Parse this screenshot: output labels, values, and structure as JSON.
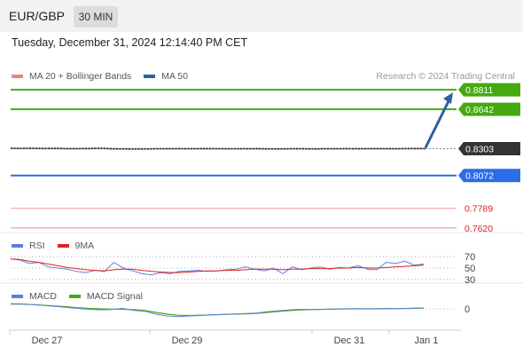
{
  "header": {
    "symbol": "EUR/GBP",
    "timeframe": "30 MIN"
  },
  "timestamp": "Tuesday, December 31, 2024 12:14:40 PM CET",
  "legend": {
    "ma20": {
      "label": "MA 20 + Bollinger Bands",
      "color": "#f08080"
    },
    "ma50": {
      "label": "MA 50",
      "color": "#2e5fa3"
    }
  },
  "credit": "Research © 2024 Trading Central",
  "rsi_legend": {
    "rsi": {
      "label": "RSI",
      "color": "#5b7fde"
    },
    "ma9": {
      "label": "9MA",
      "color": "#dd2222"
    }
  },
  "macd_legend": {
    "macd": {
      "label": "MACD",
      "color": "#5b7fde"
    },
    "signal": {
      "label": "MACD Signal",
      "color": "#44aa11"
    }
  },
  "chart_data": {
    "type": "line",
    "x_labels": [
      "Dec 27",
      "Dec 29",
      "Dec 31",
      "Jan 1"
    ],
    "price": {
      "ylim": [
        0.758,
        0.885
      ],
      "series": [
        0.8306,
        0.8305,
        0.8306,
        0.8304,
        0.8305,
        0.8303,
        0.8303,
        0.8304,
        0.8306,
        0.8302,
        0.8301,
        0.83,
        0.8301,
        0.8302,
        0.8302,
        0.8303,
        0.8302,
        0.8303,
        0.8303,
        0.8302,
        0.8302,
        0.8302,
        0.8303,
        0.8301,
        0.8301,
        0.8302,
        0.8302,
        0.8301,
        0.8302,
        0.8302,
        0.8303,
        0.8302,
        0.8303,
        0.8303,
        0.8302,
        0.8303,
        0.8304,
        0.8303
      ],
      "current": {
        "value": "0.8303",
        "color": "#333333"
      },
      "levels": [
        {
          "value": "0.8811",
          "kind": "resistance",
          "color": "#44aa11"
        },
        {
          "value": "0.8642",
          "kind": "resistance",
          "color": "#44aa11"
        },
        {
          "value": "0.8072",
          "kind": "pivot",
          "color": "#2e6be6"
        },
        {
          "value": "0.7789",
          "kind": "support",
          "color": "#dd2222"
        },
        {
          "value": "0.7620",
          "kind": "support",
          "color": "#dd2222"
        }
      ],
      "forecast_target": "0.8811"
    },
    "rsi": {
      "ylim": [
        25,
        75
      ],
      "ticks": [
        70,
        50,
        30
      ],
      "rsi": [
        66,
        64,
        58,
        60,
        52,
        50,
        48,
        44,
        42,
        46,
        44,
        60,
        50,
        45,
        40,
        38,
        42,
        40,
        44,
        45,
        46,
        44,
        45,
        47,
        48,
        52,
        48,
        45,
        50,
        40,
        52,
        47,
        50,
        52,
        48,
        51,
        50,
        54,
        48,
        47,
        60,
        58,
        62,
        55,
        57
      ],
      "ma9": [
        66,
        65,
        62,
        60,
        57,
        54,
        51,
        49,
        47,
        46,
        45,
        47,
        48,
        48,
        46,
        44,
        43,
        42,
        42,
        43,
        44,
        45,
        45,
        46,
        46,
        47,
        48,
        48,
        48,
        47,
        48,
        48,
        49,
        49,
        49,
        50,
        50,
        51,
        50,
        50,
        51,
        52,
        53,
        54,
        55
      ]
    },
    "macd": {
      "ylim": [
        -0.0009,
        0.0003
      ],
      "ticks": [
        "0"
      ],
      "macd": [
        0.00022,
        0.00021,
        0.00018,
        0.00014,
        0.0001,
        6e-05,
        2e-05,
        -2e-05,
        -4e-05,
        -3e-05,
        2e-05,
        -6e-05,
        -0.0001,
        -0.00022,
        -0.0003,
        -0.00033,
        -0.0003,
        -0.00028,
        -0.00025,
        -0.00024,
        -0.00022,
        -0.0002,
        -0.00018,
        -0.00012,
        -8e-05,
        -4e-05,
        -2e-05,
        -3e-05,
        -2e-05,
        -1e-05,
        0.0,
        1e-05,
        0.0,
        1e-05,
        2e-05,
        1e-05,
        3e-05,
        4e-05
      ],
      "signal": [
        0.0002,
        0.0002,
        0.00018,
        0.00015,
        0.00012,
        9e-05,
        5e-05,
        2e-05,
        0.0,
        -1e-05,
        -2e-05,
        -3e-05,
        -7e-05,
        -0.00015,
        -0.00022,
        -0.00027,
        -0.00028,
        -0.00027,
        -0.00025,
        -0.00024,
        -0.00022,
        -0.00021,
        -0.00019,
        -0.00015,
        -0.00011,
        -7e-05,
        -4e-05,
        -3e-05,
        -2e-05,
        -1e-05,
        0.0,
        0.0,
        0.0,
        0.0,
        1e-05,
        1e-05,
        2e-05,
        3e-05
      ]
    }
  }
}
